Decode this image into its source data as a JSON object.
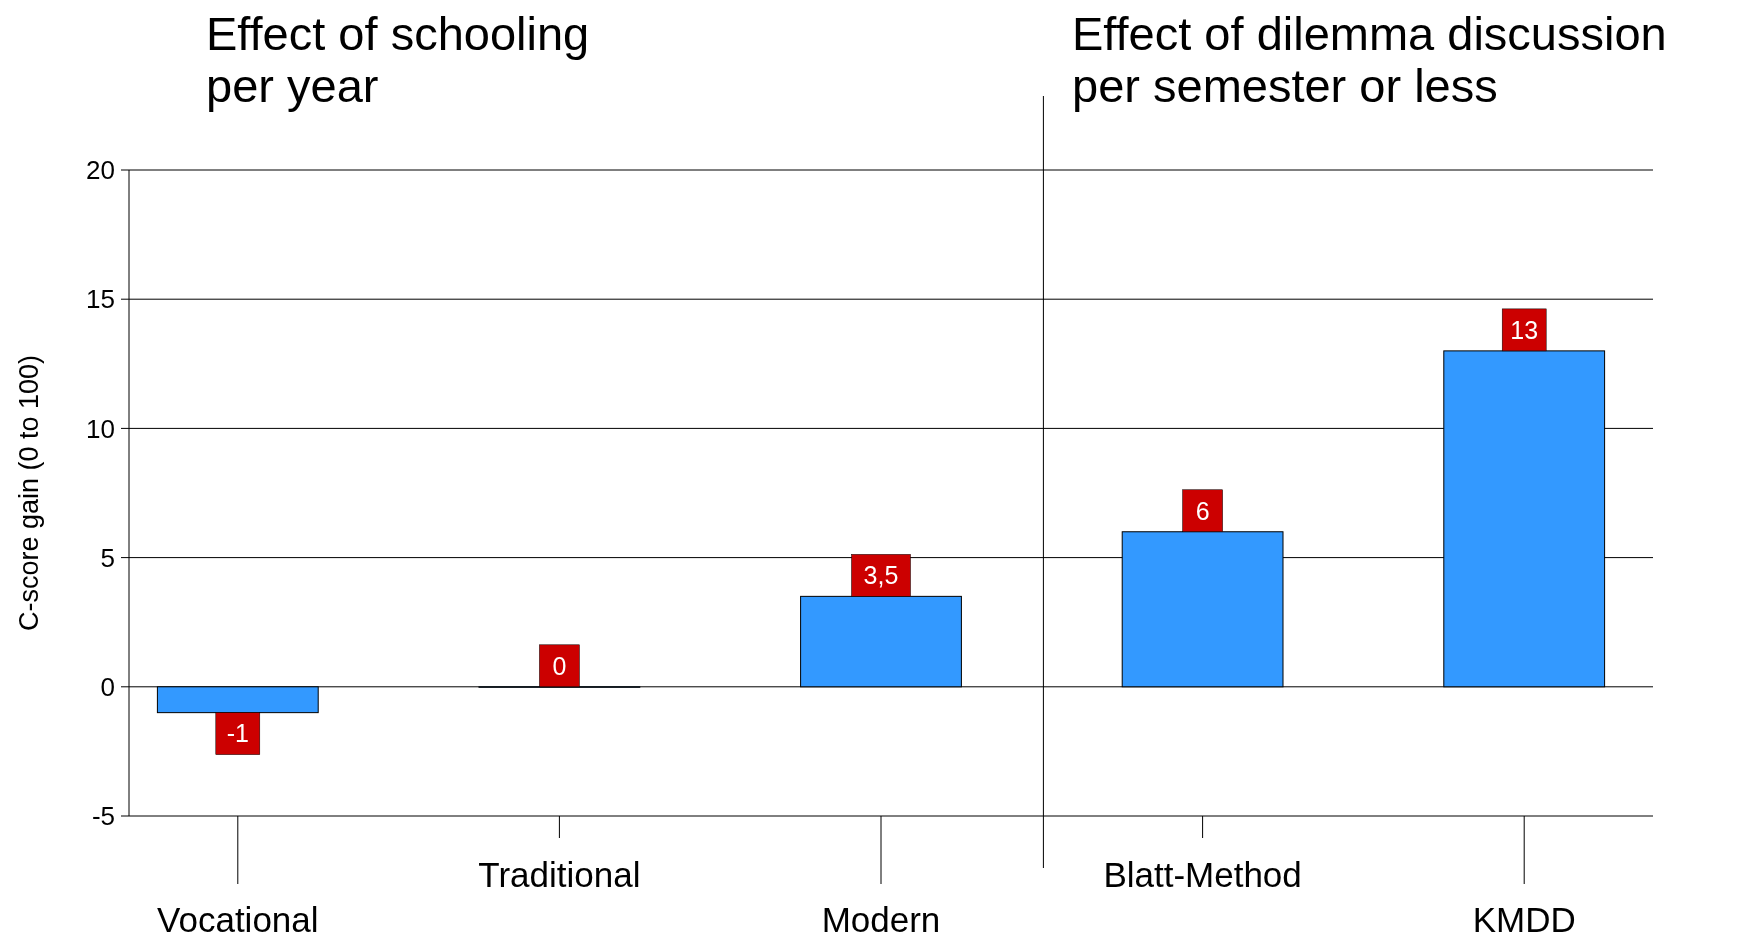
{
  "chart_data": {
    "type": "bar",
    "ylabel": "C-score gain (0 to 100)",
    "categories": [
      "Vocational",
      "Traditional",
      "Modern",
      "Blatt-Method",
      "KMDD"
    ],
    "values": [
      -1,
      0,
      3.5,
      6,
      13
    ],
    "value_labels": [
      "-1",
      "0",
      "3,5",
      "6",
      "13"
    ],
    "color": "#3399ff",
    "ylim": [
      -5,
      20
    ],
    "yticks": [
      -5,
      0,
      5,
      10,
      15,
      20
    ],
    "grid": "y",
    "annotations": [
      "Effect of schooling\nper year",
      "Effect of dilemma discussion\nper semester or less"
    ]
  }
}
